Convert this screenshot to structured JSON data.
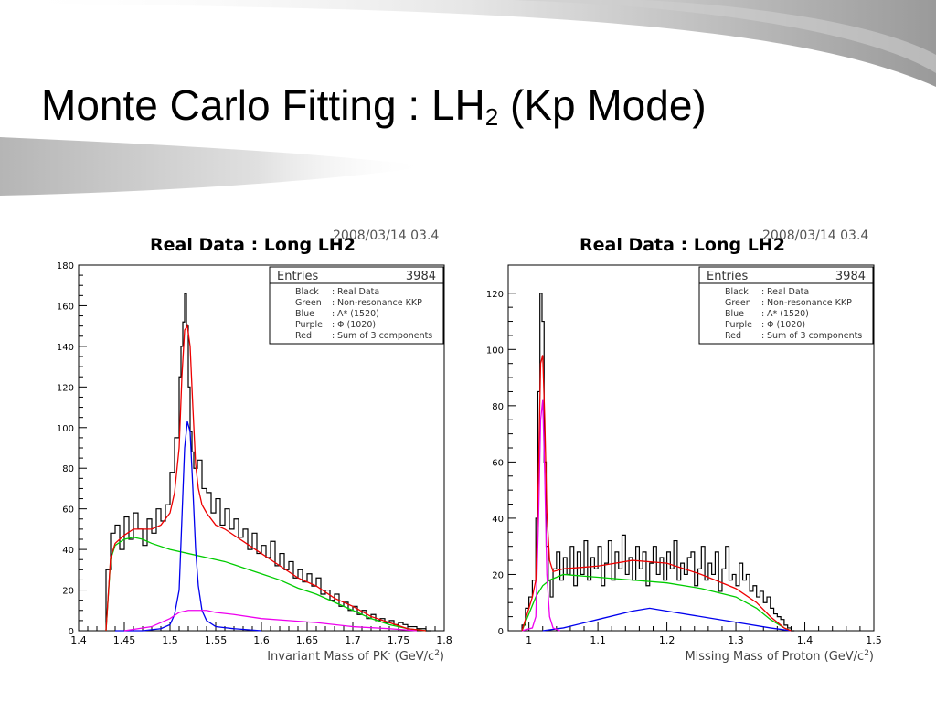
{
  "slide": {
    "title_main": "Monte Carlo Fitting : LH",
    "title_sub": "2",
    "title_tail": " (Kp Mode)"
  },
  "colors": {
    "real_data": "#000000",
    "non_resonance": "#00cc00",
    "lambda_1520": "#0000ee",
    "phi_1020": "#ee00ee",
    "sum": "#ee0000"
  },
  "chart_data": [
    {
      "type": "line",
      "title": "Real Data : Long LH2",
      "timestamp": "2008/03/14   03.4",
      "xlabel": "Invariant Mass of PK",
      "xlabel_sup": "-",
      "xlabel_unit": " (GeV/c",
      "xlabel_unit_sup": "2",
      "xlabel_unit_close": ")",
      "xlim": [
        1.4,
        1.8
      ],
      "ylim": [
        0,
        180
      ],
      "x_ticks": [
        1.4,
        1.45,
        1.5,
        1.55,
        1.6,
        1.65,
        1.7,
        1.75,
        1.8
      ],
      "x_tick_labels": [
        "1.4",
        "1.45",
        "1.5",
        "1.55",
        "1.6",
        "1.65",
        "1.7",
        "1.75",
        "1.8"
      ],
      "y_ticks": [
        0,
        20,
        40,
        60,
        80,
        100,
        120,
        140,
        160,
        180
      ],
      "y_tick_labels": [
        "0",
        "20",
        "40",
        "60",
        "80",
        "100",
        "120",
        "140",
        "160",
        "180"
      ],
      "stats": {
        "label": "Entries",
        "value": "3984"
      },
      "legend": [
        {
          "name": "Black",
          "desc": "Real Data"
        },
        {
          "name": "Green",
          "desc": "Non-resonance KKP"
        },
        {
          "name": "Blue",
          "desc": "Λ* (1520)"
        },
        {
          "name": "Purple",
          "desc": "Φ (1020)"
        },
        {
          "name": "Red",
          "desc": "Sum of 3 components"
        }
      ],
      "legend_placement": "top-right",
      "series": [
        {
          "name": "Real Data",
          "style": "step",
          "color": "#000000",
          "x": [
            1.43,
            1.435,
            1.44,
            1.445,
            1.45,
            1.455,
            1.46,
            1.465,
            1.47,
            1.475,
            1.48,
            1.485,
            1.49,
            1.495,
            1.5,
            1.505,
            1.51,
            1.512,
            1.514,
            1.516,
            1.518,
            1.52,
            1.522,
            1.524,
            1.526,
            1.53,
            1.535,
            1.54,
            1.545,
            1.55,
            1.555,
            1.56,
            1.565,
            1.57,
            1.575,
            1.58,
            1.585,
            1.59,
            1.595,
            1.6,
            1.605,
            1.61,
            1.615,
            1.62,
            1.625,
            1.63,
            1.635,
            1.64,
            1.645,
            1.65,
            1.655,
            1.66,
            1.665,
            1.67,
            1.675,
            1.68,
            1.685,
            1.69,
            1.695,
            1.7,
            1.705,
            1.71,
            1.715,
            1.72,
            1.725,
            1.73,
            1.735,
            1.74,
            1.745,
            1.75,
            1.755,
            1.76,
            1.765,
            1.77,
            1.775,
            1.78
          ],
          "y": [
            30,
            48,
            52,
            40,
            56,
            45,
            58,
            50,
            42,
            55,
            48,
            60,
            54,
            62,
            78,
            95,
            125,
            140,
            152,
            166,
            150,
            120,
            98,
            88,
            80,
            84,
            70,
            68,
            58,
            65,
            52,
            60,
            50,
            55,
            46,
            50,
            40,
            48,
            38,
            42,
            36,
            44,
            32,
            38,
            30,
            34,
            26,
            30,
            24,
            28,
            22,
            26,
            18,
            20,
            15,
            18,
            12,
            14,
            10,
            12,
            8,
            10,
            6,
            8,
            5,
            6,
            4,
            5,
            3,
            4,
            3,
            2,
            2,
            1,
            1,
            0
          ]
        },
        {
          "name": "Non-resonance KKP",
          "style": "line",
          "color": "#00cc00",
          "x": [
            1.43,
            1.435,
            1.44,
            1.45,
            1.46,
            1.47,
            1.48,
            1.5,
            1.52,
            1.54,
            1.56,
            1.58,
            1.6,
            1.62,
            1.64,
            1.66,
            1.68,
            1.7,
            1.72,
            1.74,
            1.76,
            1.78
          ],
          "y": [
            0,
            35,
            42,
            45,
            46,
            45,
            43,
            40,
            38,
            36,
            34,
            31,
            28,
            25,
            21,
            18,
            14,
            10,
            6,
            3,
            1,
            0
          ]
        },
        {
          "name": "Λ* (1520)",
          "style": "line",
          "color": "#0000ee",
          "x": [
            1.44,
            1.47,
            1.49,
            1.5,
            1.505,
            1.51,
            1.513,
            1.516,
            1.519,
            1.522,
            1.525,
            1.528,
            1.531,
            1.535,
            1.54,
            1.55,
            1.57,
            1.6
          ],
          "y": [
            0,
            0,
            1,
            3,
            8,
            20,
            55,
            90,
            103,
            98,
            70,
            40,
            22,
            10,
            5,
            2,
            1,
            0
          ]
        },
        {
          "name": "Φ (1020)",
          "style": "line",
          "color": "#ee00ee",
          "x": [
            1.45,
            1.48,
            1.5,
            1.51,
            1.52,
            1.53,
            1.54,
            1.55,
            1.57,
            1.6,
            1.63,
            1.66,
            1.7,
            1.74,
            1.77
          ],
          "y": [
            0,
            2,
            6,
            9,
            10,
            10,
            10,
            9,
            8,
            6,
            5,
            4,
            2,
            1,
            0
          ]
        },
        {
          "name": "Sum of 3 components",
          "style": "line",
          "color": "#ee0000",
          "x": [
            1.43,
            1.435,
            1.44,
            1.45,
            1.46,
            1.47,
            1.48,
            1.49,
            1.5,
            1.505,
            1.51,
            1.513,
            1.516,
            1.519,
            1.522,
            1.525,
            1.528,
            1.531,
            1.535,
            1.54,
            1.55,
            1.56,
            1.58,
            1.6,
            1.62,
            1.64,
            1.66,
            1.68,
            1.7,
            1.72,
            1.74,
            1.76,
            1.78
          ],
          "y": [
            0,
            36,
            43,
            47,
            50,
            50,
            50,
            52,
            58,
            68,
            90,
            125,
            148,
            150,
            140,
            110,
            82,
            70,
            62,
            58,
            52,
            50,
            44,
            38,
            32,
            26,
            22,
            16,
            12,
            7,
            4,
            1,
            0
          ]
        }
      ]
    },
    {
      "type": "line",
      "title": "Real Data : Long LH2",
      "timestamp": "2008/03/14   03.4",
      "xlabel": "Missing Mass of Proton",
      "xlabel_sup": "",
      "xlabel_unit": " (GeV/c",
      "xlabel_unit_sup": "2",
      "xlabel_unit_close": ")",
      "xlim": [
        0.97,
        1.5
      ],
      "ylim": [
        0,
        130
      ],
      "x_ticks": [
        1.0,
        1.1,
        1.2,
        1.3,
        1.4,
        1.5
      ],
      "x_tick_labels": [
        "1",
        "1.1",
        "1.2",
        "1.3",
        "1.4",
        "1.5"
      ],
      "y_ticks": [
        0,
        20,
        40,
        60,
        80,
        100,
        120
      ],
      "y_tick_labels": [
        "0",
        "20",
        "40",
        "60",
        "80",
        "100",
        "120"
      ],
      "stats": {
        "label": "Entries",
        "value": "3984"
      },
      "legend": [
        {
          "name": "Black",
          "desc": "Real Data"
        },
        {
          "name": "Green",
          "desc": "Non-resonance KKP"
        },
        {
          "name": "Blue",
          "desc": "Λ* (1520)"
        },
        {
          "name": "Purple",
          "desc": "Φ (1020)"
        },
        {
          "name": "Red",
          "desc": "Sum of 3 components"
        }
      ],
      "legend_placement": "top-right",
      "series": [
        {
          "name": "Real Data",
          "style": "step",
          "color": "#000000",
          "x": [
            0.99,
            0.995,
            1.0,
            1.005,
            1.01,
            1.013,
            1.016,
            1.019,
            1.022,
            1.025,
            1.028,
            1.031,
            1.035,
            1.04,
            1.045,
            1.05,
            1.055,
            1.06,
            1.065,
            1.07,
            1.075,
            1.08,
            1.085,
            1.09,
            1.095,
            1.1,
            1.105,
            1.11,
            1.115,
            1.12,
            1.125,
            1.13,
            1.135,
            1.14,
            1.145,
            1.15,
            1.155,
            1.16,
            1.165,
            1.17,
            1.175,
            1.18,
            1.185,
            1.19,
            1.195,
            1.2,
            1.205,
            1.21,
            1.215,
            1.22,
            1.225,
            1.23,
            1.235,
            1.24,
            1.245,
            1.25,
            1.255,
            1.26,
            1.265,
            1.27,
            1.275,
            1.28,
            1.285,
            1.29,
            1.295,
            1.3,
            1.305,
            1.31,
            1.315,
            1.32,
            1.325,
            1.33,
            1.335,
            1.34,
            1.345,
            1.35,
            1.355,
            1.36,
            1.365,
            1.37,
            1.375,
            1.38
          ],
          "y": [
            2,
            8,
            12,
            18,
            40,
            85,
            120,
            110,
            60,
            30,
            18,
            12,
            22,
            28,
            18,
            26,
            20,
            30,
            16,
            28,
            20,
            32,
            18,
            26,
            22,
            30,
            16,
            24,
            32,
            18,
            28,
            22,
            34,
            20,
            26,
            18,
            30,
            22,
            28,
            16,
            24,
            30,
            20,
            26,
            18,
            28,
            22,
            32,
            18,
            24,
            20,
            26,
            28,
            16,
            22,
            30,
            18,
            24,
            20,
            28,
            14,
            22,
            30,
            18,
            20,
            16,
            24,
            18,
            20,
            14,
            16,
            12,
            14,
            10,
            12,
            8,
            6,
            5,
            4,
            2,
            1,
            0
          ]
        },
        {
          "name": "Non-resonance KKP",
          "style": "line",
          "color": "#00cc00",
          "x": [
            0.99,
            1.0,
            1.01,
            1.02,
            1.03,
            1.05,
            1.1,
            1.15,
            1.2,
            1.25,
            1.3,
            1.33,
            1.35,
            1.37,
            1.38
          ],
          "y": [
            0,
            6,
            12,
            16,
            18,
            20,
            19,
            18,
            17,
            15,
            12,
            8,
            4,
            1,
            0
          ]
        },
        {
          "name": "Λ* (1520)",
          "style": "line",
          "color": "#0000ee",
          "x": [
            1.02,
            1.05,
            1.1,
            1.15,
            1.175,
            1.2,
            1.25,
            1.3,
            1.35,
            1.38
          ],
          "y": [
            0,
            1,
            4,
            7,
            8,
            7,
            5,
            3,
            1,
            0
          ]
        },
        {
          "name": "Φ (1020)",
          "style": "line",
          "color": "#ee00ee",
          "x": [
            0.99,
            1.005,
            1.01,
            1.014,
            1.017,
            1.02,
            1.023,
            1.026,
            1.03,
            1.035,
            1.045
          ],
          "y": [
            0,
            1,
            5,
            40,
            75,
            82,
            55,
            20,
            5,
            1,
            0
          ]
        },
        {
          "name": "Sum of 3 components",
          "style": "line",
          "color": "#ee0000",
          "x": [
            0.99,
            1.0,
            1.005,
            1.01,
            1.014,
            1.017,
            1.02,
            1.023,
            1.026,
            1.03,
            1.035,
            1.05,
            1.1,
            1.15,
            1.2,
            1.25,
            1.3,
            1.33,
            1.35,
            1.37,
            1.38
          ],
          "y": [
            0,
            8,
            12,
            18,
            58,
            95,
            98,
            75,
            42,
            25,
            21,
            22,
            23,
            25,
            24,
            20,
            15,
            10,
            5,
            1,
            0
          ]
        }
      ]
    }
  ]
}
